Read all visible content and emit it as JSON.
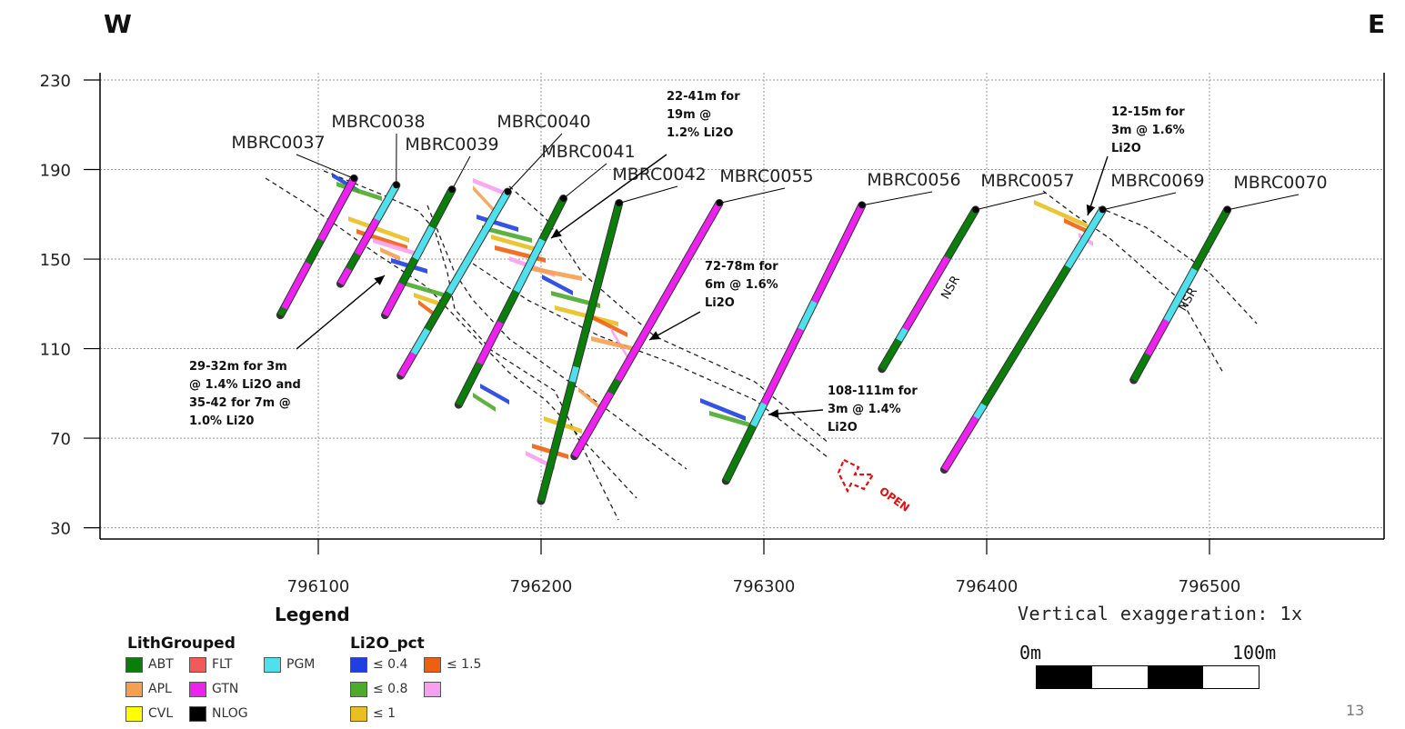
{
  "directions": {
    "west": "W",
    "east": "E"
  },
  "axes": {
    "y_ticks": [
      "230",
      "190",
      "150",
      "110",
      "70",
      "30"
    ],
    "x_ticks": [
      "796100",
      "796200",
      "796300",
      "796400",
      "796500"
    ]
  },
  "holes": [
    {
      "name": "MBRC0037",
      "collar": [
        796116,
        186
      ],
      "toe": [
        796083,
        125
      ],
      "segments": [
        [
          "GTN",
          0,
          0.45
        ],
        [
          "ABT",
          0.45,
          0.62
        ],
        [
          "GTN",
          0.62,
          0.95
        ],
        [
          "ABT",
          0.95,
          1
        ]
      ]
    },
    {
      "name": "MBRC0038",
      "collar": [
        796135,
        183
      ],
      "toe": [
        796110,
        139
      ],
      "segments": [
        [
          "PGM",
          0,
          0.35
        ],
        [
          "GTN",
          0.35,
          0.7
        ],
        [
          "ABT",
          0.7,
          0.85
        ],
        [
          "GTN",
          0.85,
          1
        ]
      ]
    },
    {
      "name": "MBRC0039",
      "collar": [
        796160,
        181
      ],
      "toe": [
        796130,
        125
      ],
      "segments": [
        [
          "ABT",
          0,
          0.3
        ],
        [
          "PGM",
          0.3,
          0.55
        ],
        [
          "ABT",
          0.55,
          0.75
        ],
        [
          "GTN",
          0.75,
          1
        ]
      ]
    },
    {
      "name": "MBRC0040",
      "collar": [
        796185,
        180
      ],
      "toe": [
        796137,
        98
      ],
      "segments": [
        [
          "PGM",
          0,
          0.55
        ],
        [
          "ABT",
          0.55,
          0.75
        ],
        [
          "PGM",
          0.75,
          0.88
        ],
        [
          "GTN",
          0.88,
          1
        ]
      ]
    },
    {
      "name": "MBRC0041",
      "collar": [
        796210,
        177
      ],
      "toe": [
        796163,
        85
      ],
      "segments": [
        [
          "ABT",
          0,
          0.2
        ],
        [
          "PGM",
          0.2,
          0.45
        ],
        [
          "ABT",
          0.45,
          0.6
        ],
        [
          "GTN",
          0.6,
          0.8
        ],
        [
          "ABT",
          0.8,
          1
        ]
      ]
    },
    {
      "name": "MBRC0042",
      "collar": [
        796235,
        175
      ],
      "toe": [
        796200,
        42
      ],
      "segments": [
        [
          "ABT",
          0,
          0.55
        ],
        [
          "PGM",
          0.55,
          0.6
        ],
        [
          "ABT",
          0.6,
          1
        ]
      ]
    },
    {
      "name": "MBRC0055",
      "collar": [
        796280,
        175
      ],
      "toe": [
        796215,
        62
      ],
      "segments": [
        [
          "GTN",
          0,
          0.7
        ],
        [
          "ABT",
          0.7,
          0.75
        ],
        [
          "GTN",
          0.75,
          1
        ]
      ]
    },
    {
      "name": "MBRC0056",
      "collar": [
        796344,
        174
      ],
      "toe": [
        796283,
        51
      ],
      "segments": [
        [
          "GTN",
          0,
          0.35
        ],
        [
          "PGM",
          0.35,
          0.45
        ],
        [
          "GTN",
          0.45,
          0.72
        ],
        [
          "PGM",
          0.72,
          0.8
        ],
        [
          "ABT",
          0.8,
          1
        ]
      ]
    },
    {
      "name": "MBRC0057",
      "collar": [
        796395,
        172
      ],
      "toe": [
        796353,
        101
      ],
      "segments": [
        [
          "ABT",
          0,
          0.3
        ],
        [
          "GTN",
          0.3,
          0.75
        ],
        [
          "PGM",
          0.75,
          0.82
        ],
        [
          "ABT",
          0.82,
          1
        ]
      ]
    },
    {
      "name": "MBRC0069",
      "collar": [
        796452,
        172
      ],
      "toe": [
        796381,
        56
      ],
      "segments": [
        [
          "PGM",
          0,
          0.22
        ],
        [
          "ABT",
          0.22,
          0.5
        ],
        [
          "ABT",
          0.5,
          0.75
        ],
        [
          "PGM",
          0.75,
          0.8
        ],
        [
          "GTN",
          0.8,
          1
        ]
      ]
    },
    {
      "name": "MBRC0070",
      "collar": [
        796508,
        172
      ],
      "toe": [
        796466,
        96
      ],
      "segments": [
        [
          "ABT",
          0,
          0.35
        ],
        [
          "PGM",
          0.35,
          0.65
        ],
        [
          "GTN",
          0.65,
          0.85
        ],
        [
          "ABT",
          0.85,
          1
        ]
      ]
    }
  ],
  "annotations": [
    {
      "lines": [
        "22-41m for",
        "19m @",
        "1.2% Li2O"
      ]
    },
    {
      "lines": [
        "12-15m for",
        "3m @ 1.6%",
        "Li2O"
      ]
    },
    {
      "lines": [
        "72-78m for",
        "6m @ 1.6%",
        "Li2O"
      ]
    },
    {
      "lines": [
        "29-32m for 3m",
        "@ 1.4% Li2O and",
        "35-42 for 7m @",
        "1.0% Li20"
      ]
    },
    {
      "lines": [
        "108-111m for",
        "3m @ 1.4%",
        "Li2O"
      ]
    }
  ],
  "nsr_label": "NSR",
  "open_label": "OPEN",
  "legend": {
    "title": "Legend",
    "lith_title": "LithGrouped",
    "li2o_title": "Li2O_pct",
    "lith_items": [
      {
        "label": "ABT",
        "color": "#0b7d0b"
      },
      {
        "label": "APL",
        "color": "#f4a050"
      },
      {
        "label": "CVL",
        "color": "#ffff00"
      },
      {
        "label": "FLT",
        "color": "#f25a5a"
      },
      {
        "label": "GTN",
        "color": "#ee22ee"
      },
      {
        "label": "NLOG",
        "color": "#000000"
      },
      {
        "label": "PGM",
        "color": "#4fe0ec"
      }
    ],
    "li2o_items": [
      {
        "label": "≤ 0.4",
        "color": "#1f3fe0"
      },
      {
        "label": "≤ 0.8",
        "color": "#4caa2c"
      },
      {
        "label": "≤ 1",
        "color": "#e8c020"
      },
      {
        "label": "≤ 1.5",
        "color": "#ee6010"
      },
      {
        "label": "",
        "color": "#f7a0f0"
      }
    ]
  },
  "scale": {
    "exaggeration": "Vertical exaggeration: 1x",
    "start": "0m",
    "end": "100m"
  },
  "slide_number": "13"
}
